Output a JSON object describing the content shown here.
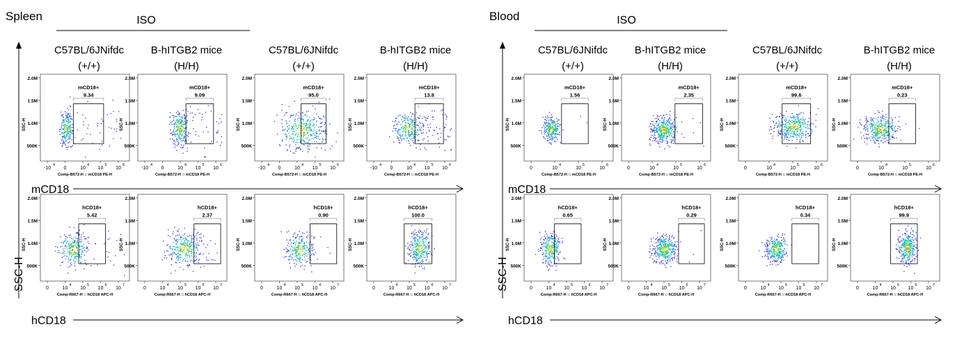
{
  "chart_data": {
    "type": "scatter",
    "panels": [
      {
        "tissue": "Spleen",
        "iso_label": "ISO",
        "yaxis_label": "SSC-H",
        "row_axis_labels": [
          "mCD18",
          "hCD18"
        ],
        "column_titles": [
          {
            "strain": "C57BL/6JNifdc",
            "genotype": "(+/+)"
          },
          {
            "strain": "B-hITGB2 mice",
            "genotype": "(H/H)"
          },
          {
            "strain": "C57BL/6JNifdc",
            "genotype": "(+/+)"
          },
          {
            "strain": "B-hITGB2 mice",
            "genotype": "(H/H)"
          }
        ],
        "rows": [
          {
            "marker": "mCD18",
            "gate_label": "mCD18+",
            "xlabel": "Comp-B572-H :: mCD18 PE-H",
            "ylabel": "SSC-H",
            "y_ticks": [
              "500K",
              "1.0M",
              "1.5M",
              "2.0M"
            ],
            "x_ticks": [
              "-10",
              "0",
              "10",
              "10",
              "10"
            ],
            "x_tick_exps": [
              "4",
              "",
              "4",
              "5",
              "6"
            ],
            "gate_percents": [
              "9.34",
              "9.09",
              "95.0",
              "13.8"
            ]
          },
          {
            "marker": "hCD18",
            "gate_label": "hCD18+",
            "xlabel": "Comp-R667-H :: hCD18 APC-H",
            "ylabel": "SSC-H",
            "y_ticks": [
              "500K",
              "1.0M",
              "1.5M",
              "2.0M"
            ],
            "x_ticks": [
              "0",
              "10",
              "10",
              "10",
              "10"
            ],
            "x_tick_exps": [
              "",
              "4",
              "5",
              "6",
              "7"
            ],
            "gate_percents": [
              "5.42",
              "2.37",
              "0.90",
              "100.0"
            ]
          }
        ]
      },
      {
        "tissue": "Blood",
        "iso_label": "ISO",
        "yaxis_label": "SSC-H",
        "row_axis_labels": [
          "mCD18",
          "hCD18"
        ],
        "column_titles": [
          {
            "strain": "C57BL/6JNifdc",
            "genotype": "(+/+)"
          },
          {
            "strain": "B-hITGB2 mice",
            "genotype": "(H/H)"
          },
          {
            "strain": "C57BL/6JNifdc",
            "genotype": "(+/+)"
          },
          {
            "strain": "B-hITGB2 mice",
            "genotype": "(H/H)"
          }
        ],
        "rows": [
          {
            "marker": "mCD18",
            "gate_label": "mCD18+",
            "xlabel": "Comp-B572-H :: mCD18 PE-H",
            "ylabel": "SSC-H",
            "y_ticks": [
              "500K",
              "1.0M",
              "1.5M",
              "2.0M"
            ],
            "x_ticks": [
              "0",
              "10",
              "10",
              "10"
            ],
            "x_tick_exps": [
              "",
              "4",
              "5",
              "6"
            ],
            "gate_percents": [
              "1.56",
              "2.35",
              "99.6",
              "0.23"
            ]
          },
          {
            "marker": "hCD18",
            "gate_label": "hCD18+",
            "xlabel": "Comp-R667-H :: hCD18 APC-H",
            "ylabel": "SSC-H",
            "y_ticks": [
              "500K",
              "1.0M",
              "1.5M",
              "2.0M"
            ],
            "x_ticks": [
              "0",
              "10",
              "10",
              "10",
              "10"
            ],
            "x_tick_exps": [
              "",
              "4",
              "5",
              "6",
              "7"
            ],
            "gate_percents": [
              "0.65",
              "0.29",
              "0.34",
              "99.9"
            ]
          }
        ]
      }
    ]
  }
}
